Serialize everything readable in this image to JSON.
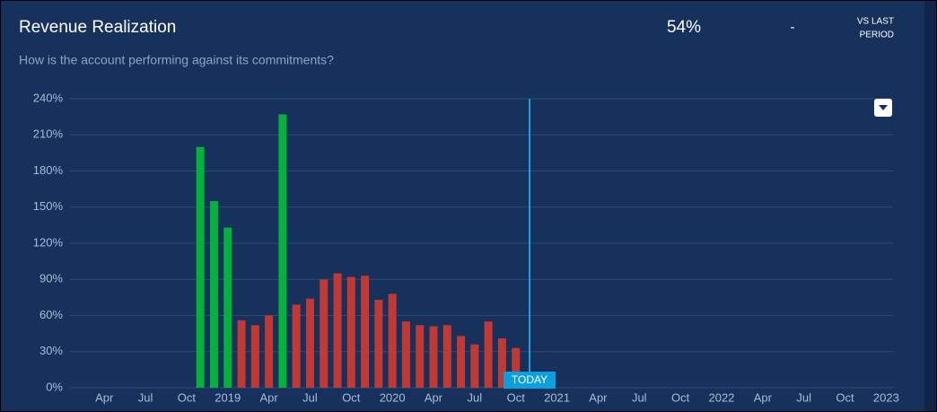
{
  "header": {
    "title": "Revenue Realization",
    "subtitle": "How is the account performing against its commitments?",
    "kpi": "54%",
    "change": "-",
    "comparison_label": [
      "VS LAST",
      "PERIOD"
    ]
  },
  "chart_data": {
    "type": "bar",
    "categories": [
      null,
      null,
      "Apr",
      null,
      null,
      "Jul",
      null,
      null,
      "Oct",
      null,
      null,
      "2019",
      null,
      null,
      "Apr",
      null,
      null,
      "Jul",
      null,
      null,
      "Oct",
      null,
      null,
      "2020",
      null,
      null,
      "Apr",
      null,
      null,
      "Jul",
      null,
      null,
      "Oct",
      null,
      null,
      "2021",
      null,
      null,
      "Apr",
      null,
      null,
      "Jul",
      null,
      null,
      "Oct",
      null,
      null,
      "2022",
      null,
      null,
      "Apr",
      null,
      null,
      "Jul",
      null,
      null,
      "Oct",
      null,
      null,
      "2023"
    ],
    "values": [
      null,
      null,
      null,
      null,
      null,
      null,
      null,
      null,
      null,
      200,
      155,
      133,
      56,
      52,
      60,
      227,
      69,
      74,
      90,
      95,
      92,
      93,
      73,
      78,
      55,
      52,
      51,
      52,
      43,
      36,
      55,
      41,
      33,
      null,
      null,
      null,
      null,
      null,
      null,
      null,
      null,
      null,
      null,
      null,
      null,
      null,
      null,
      null,
      null,
      null,
      null,
      null,
      null,
      null,
      null,
      null,
      null,
      null,
      null,
      null
    ],
    "colors": [
      null,
      null,
      null,
      null,
      null,
      null,
      null,
      null,
      null,
      "#04b23a",
      "#04b23a",
      "#04b23a",
      "#c23934",
      "#c23934",
      "#c23934",
      "#04b23a",
      "#c23934",
      "#c23934",
      "#c23934",
      "#c23934",
      "#c23934",
      "#c23934",
      "#c23934",
      "#c23934",
      "#c23934",
      "#c23934",
      "#c23934",
      "#c23934",
      "#c23934",
      "#c23934",
      "#c23934",
      "#c23934",
      "#c23934",
      null,
      null,
      null,
      null,
      null,
      null,
      null,
      null,
      null,
      null,
      null,
      null,
      null,
      null,
      null,
      null,
      null,
      null,
      null,
      null,
      null,
      null,
      null,
      null,
      null,
      null,
      null
    ],
    "ylim": [
      0,
      240
    ],
    "yticks": [
      {
        "value": 0,
        "label": "0%"
      },
      {
        "value": 30,
        "label": "30%"
      },
      {
        "value": 60,
        "label": "60%"
      },
      {
        "value": 90,
        "label": "90%"
      },
      {
        "value": 120,
        "label": "120%"
      },
      {
        "value": 150,
        "label": "150%"
      },
      {
        "value": 180,
        "label": "180%"
      },
      {
        "value": 210,
        "label": "210%"
      },
      {
        "value": 240,
        "label": "240%"
      }
    ],
    "grid": true,
    "annotations": [
      "TODAY"
    ]
  }
}
